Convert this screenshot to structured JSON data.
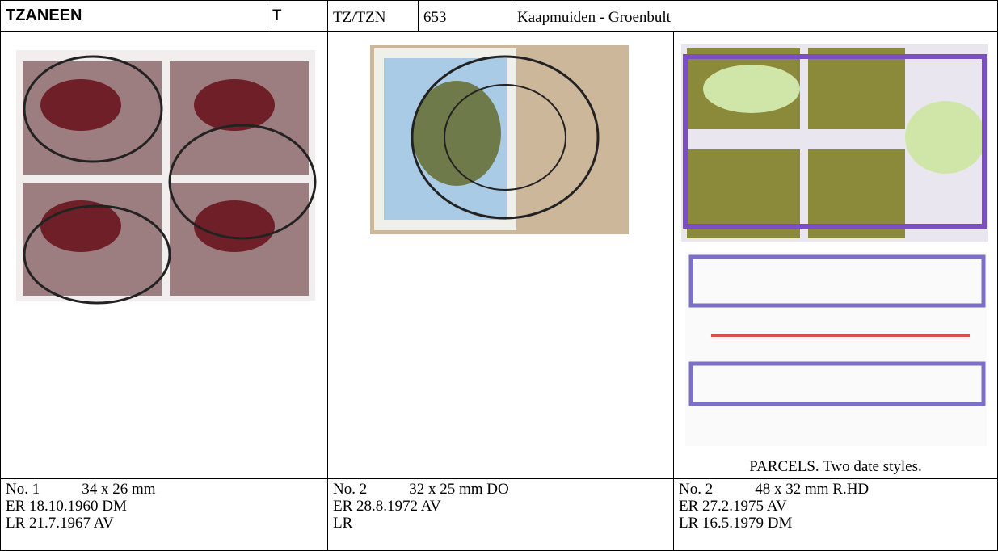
{
  "header": {
    "name": "TZANEEN",
    "code": "T",
    "abbr": "TZ/TZN",
    "number": "653",
    "route": "Kaapmuiden - Groenbult"
  },
  "images": {
    "caption": "PARCELS. Two date styles."
  },
  "entries": [
    {
      "no": "No. 1",
      "size": "34 x 26 mm",
      "er": "ER 18.10.1960 DM",
      "lr": "LR 21.7.1967 AV"
    },
    {
      "no": "No. 2",
      "size": "32 x 25 mm DO",
      "er": "ER 28.8.1972 AV",
      "lr": "LR"
    },
    {
      "no": "No. 2",
      "size": "48 x 32 mm R.HD",
      "er": "ER 27.2.1975 AV",
      "lr": "LR 16.5.1979 DM"
    }
  ]
}
